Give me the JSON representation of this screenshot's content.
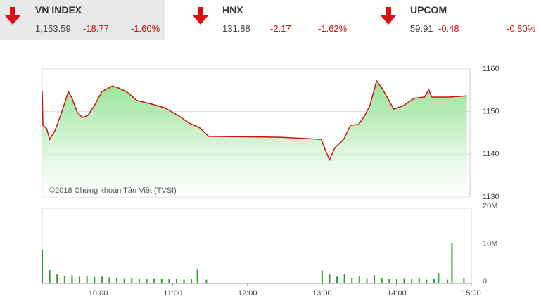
{
  "header": {
    "indices": [
      {
        "name": "VN INDEX",
        "value": "1,153.59",
        "change": "-18.77",
        "percent": "-1.60%"
      },
      {
        "name": "HNX",
        "value": "131.88",
        "change": "-2.17",
        "percent": "-1.62%"
      },
      {
        "name": "UPCOM",
        "value": "59.91",
        "change": "-0.48",
        "percent": "-0.80%"
      }
    ]
  },
  "chart_data": [
    {
      "type": "line",
      "annotation": "©2018 Chứng khoán Tân Việt (TVSI)",
      "color": "#cc1111",
      "fill_color": "#86e086",
      "x": [
        9.25,
        9.26,
        9.31,
        9.35,
        9.42,
        9.51,
        9.6,
        9.65,
        9.72,
        9.79,
        9.86,
        9.95,
        10.05,
        10.19,
        10.25,
        10.38,
        10.52,
        10.71,
        10.89,
        11.08,
        11.22,
        11.36,
        11.48,
        12.44,
        12.99,
        13.05,
        13.1,
        13.17,
        13.29,
        13.38,
        13.49,
        13.57,
        13.64,
        13.73,
        13.8,
        13.87,
        13.96,
        14.09,
        14.23,
        14.37,
        14.43,
        14.47,
        14.7,
        14.94
      ],
      "values": [
        1154.7,
        1146.8,
        1146.0,
        1143.5,
        1145.5,
        1149.8,
        1154.7,
        1153.1,
        1149.8,
        1148.6,
        1149.1,
        1151.4,
        1154.7,
        1156.0,
        1155.7,
        1154.7,
        1152.6,
        1151.8,
        1150.9,
        1149.0,
        1147.3,
        1146.2,
        1144.2,
        1144.0,
        1143.5,
        1140.7,
        1138.7,
        1141.5,
        1143.5,
        1146.8,
        1147.0,
        1149.0,
        1151.4,
        1157.2,
        1155.6,
        1153.4,
        1150.6,
        1151.4,
        1153.1,
        1153.4,
        1155.1,
        1153.4,
        1153.4,
        1153.7
      ],
      "xlim": [
        9.25,
        15
      ],
      "ylim": [
        1130,
        1160
      ],
      "yticks": [
        1130,
        1140,
        1150,
        1160
      ],
      "grid": true
    },
    {
      "type": "bar",
      "color": "#2e9a2e",
      "x": [
        9.25,
        9.35,
        9.45,
        9.55,
        9.65,
        9.75,
        9.85,
        9.95,
        10.05,
        10.15,
        10.25,
        10.35,
        10.45,
        10.55,
        10.65,
        10.75,
        10.85,
        10.95,
        11.05,
        11.15,
        11.25,
        11.33,
        11.45,
        13.0,
        13.1,
        13.2,
        13.3,
        13.4,
        13.5,
        13.6,
        13.7,
        13.8,
        13.9,
        14.0,
        14.1,
        14.2,
        14.3,
        14.4,
        14.5,
        14.56,
        14.68,
        14.74,
        14.9
      ],
      "values": [
        9.0,
        3.6,
        2.4,
        2.0,
        2.2,
        1.8,
        2.0,
        1.7,
        1.8,
        1.6,
        1.5,
        1.4,
        1.5,
        1.3,
        1.2,
        1.4,
        1.2,
        1.1,
        1.2,
        1.0,
        1.1,
        3.7,
        1.0,
        3.5,
        2.5,
        1.8,
        2.6,
        1.5,
        2.0,
        1.4,
        2.2,
        1.5,
        1.3,
        1.2,
        1.4,
        1.1,
        1.5,
        1.0,
        1.2,
        2.8,
        1.0,
        10.8,
        1.5
      ],
      "xlim": [
        9.25,
        15
      ],
      "ylim": [
        0,
        20
      ],
      "yticks": [
        0,
        {
          "value": 10,
          "label": "10M"
        },
        {
          "value": 20,
          "label": "20M"
        }
      ],
      "xticks": [
        {
          "value": 10,
          "label": "10:00"
        },
        {
          "value": 11,
          "label": "11:00"
        },
        {
          "value": 12,
          "label": "12:00"
        },
        {
          "value": 13,
          "label": "13:00"
        },
        {
          "value": 14,
          "label": "14:00"
        },
        {
          "value": 15,
          "label": "15:00"
        }
      ],
      "grid": true
    }
  ]
}
